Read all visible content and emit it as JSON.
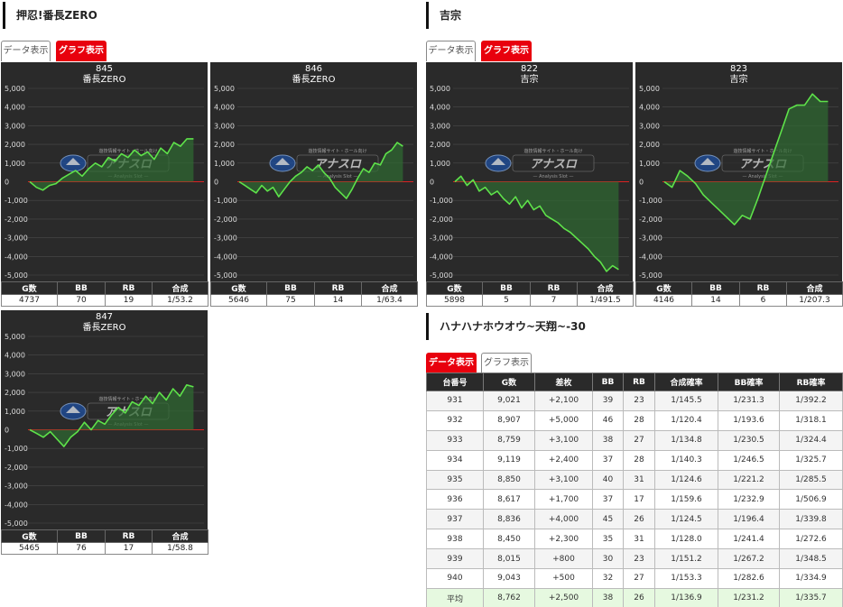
{
  "sections": [
    {
      "title": "押忍!番長ZERO",
      "tab_data": "データ表示",
      "tab_graph": "グラフ表示"
    },
    {
      "title": "吉宗",
      "tab_data": "データ表示",
      "tab_graph": "グラフ表示"
    },
    {
      "title": "ハナハナホウオウ~天翔~-30",
      "tab_data": "データ表示",
      "tab_graph": "グラフ表示"
    }
  ],
  "y_ticks": [
    "5,000",
    "4,000",
    "3,000",
    "2,000",
    "1,000",
    "0",
    "-1,000",
    "-2,000",
    "-3,000",
    "-4,000",
    "-5,000"
  ],
  "stat_headers": [
    "G数",
    "BB",
    "RB",
    "合成"
  ],
  "watermark": {
    "top": "遊技情報サイト・ホール向け",
    "main": "アナスロ",
    "sub": "— Analysis Slot —"
  },
  "colors": {
    "line": "#5ee24a",
    "zero": "#d22",
    "bg": "#2a2a2a",
    "active_tab": "#e8000d"
  },
  "machines": [
    {
      "num": "845",
      "name": "番長ZERO",
      "g": "4737",
      "bb": "70",
      "rb": "19",
      "prob": "1/53.2",
      "series": [
        0,
        -300,
        -450,
        -200,
        -100,
        200,
        400,
        600,
        300,
        700,
        1000,
        800,
        1300,
        1100,
        1500,
        1300,
        1700,
        1400,
        1600,
        1200,
        1800,
        1500,
        2100,
        1900,
        2300,
        2300
      ]
    },
    {
      "num": "846",
      "name": "番長ZERO",
      "g": "5646",
      "bb": "75",
      "rb": "14",
      "prob": "1/63.4",
      "series": [
        0,
        -200,
        -400,
        -600,
        -200,
        -500,
        -300,
        -800,
        -400,
        0,
        300,
        500,
        800,
        600,
        900,
        500,
        200,
        -300,
        -600,
        -900,
        -400,
        200,
        700,
        500,
        1000,
        900,
        1500,
        1700,
        2100,
        1900
      ]
    },
    {
      "num": "847",
      "name": "番長ZERO",
      "g": "5465",
      "bb": "76",
      "rb": "17",
      "prob": "1/58.8",
      "series": [
        0,
        -200,
        -400,
        -100,
        -500,
        -900,
        -400,
        -100,
        400,
        0,
        500,
        300,
        800,
        1200,
        900,
        1500,
        1300,
        1800,
        1400,
        2000,
        1600,
        2200,
        1800,
        2400,
        2300
      ]
    },
    {
      "num": "822",
      "name": "吉宗",
      "g": "5898",
      "bb": "5",
      "rb": "7",
      "prob": "1/491.5",
      "series": [
        0,
        300,
        -200,
        100,
        -500,
        -300,
        -700,
        -500,
        -900,
        -1200,
        -800,
        -1400,
        -1000,
        -1500,
        -1300,
        -1800,
        -2000,
        -2200,
        -2500,
        -2700,
        -3000,
        -3300,
        -3600,
        -4000,
        -4300,
        -4800,
        -4500,
        -4700
      ]
    },
    {
      "num": "823",
      "name": "吉宗",
      "g": "4146",
      "bb": "14",
      "rb": "6",
      "prob": "1/207.3",
      "series": [
        0,
        -300,
        600,
        300,
        -100,
        -700,
        -1100,
        -1500,
        -1900,
        -2300,
        -1800,
        -2000,
        -900,
        300,
        1500,
        2700,
        3900,
        4100,
        4100,
        4700,
        4300,
        4300
      ]
    }
  ],
  "data_table": {
    "headers": [
      "台番号",
      "G数",
      "差枚",
      "BB",
      "RB",
      "合成確率",
      "BB確率",
      "RB確率"
    ],
    "rows": [
      [
        "931",
        "9,021",
        "+2,100",
        "39",
        "23",
        "1/145.5",
        "1/231.3",
        "1/392.2"
      ],
      [
        "932",
        "8,907",
        "+5,000",
        "46",
        "28",
        "1/120.4",
        "1/193.6",
        "1/318.1"
      ],
      [
        "933",
        "8,759",
        "+3,100",
        "38",
        "27",
        "1/134.8",
        "1/230.5",
        "1/324.4"
      ],
      [
        "934",
        "9,119",
        "+2,400",
        "37",
        "28",
        "1/140.3",
        "1/246.5",
        "1/325.7"
      ],
      [
        "935",
        "8,850",
        "+3,100",
        "40",
        "31",
        "1/124.6",
        "1/221.2",
        "1/285.5"
      ],
      [
        "936",
        "8,617",
        "+1,700",
        "37",
        "17",
        "1/159.6",
        "1/232.9",
        "1/506.9"
      ],
      [
        "937",
        "8,836",
        "+4,000",
        "45",
        "26",
        "1/124.5",
        "1/196.4",
        "1/339.8"
      ],
      [
        "938",
        "8,450",
        "+2,300",
        "35",
        "31",
        "1/128.0",
        "1/241.4",
        "1/272.6"
      ],
      [
        "939",
        "8,015",
        "+800",
        "30",
        "23",
        "1/151.2",
        "1/267.2",
        "1/348.5"
      ],
      [
        "940",
        "9,043",
        "+500",
        "32",
        "27",
        "1/153.3",
        "1/282.6",
        "1/334.9"
      ]
    ],
    "avg": [
      "平均",
      "8,762",
      "+2,500",
      "38",
      "26",
      "1/136.9",
      "1/231.2",
      "1/335.7"
    ]
  }
}
